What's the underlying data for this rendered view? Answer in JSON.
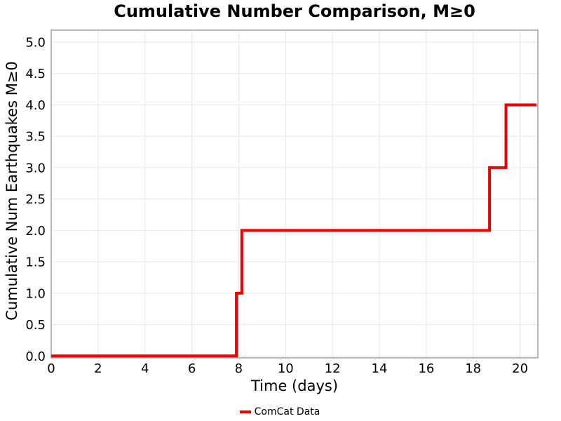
{
  "chart_data": {
    "type": "line",
    "subtype": "step-post",
    "title": "Cumulative Number Comparison, M≥0",
    "xlabel": "Time (days)",
    "ylabel": "Cumulative Num Earthquakes M≥0",
    "xlim": [
      0,
      20.76
    ],
    "ylim": [
      -0.03,
      5.19
    ],
    "xticks": [
      "0",
      "2",
      "4",
      "6",
      "8",
      "10",
      "12",
      "14",
      "16",
      "18",
      "20"
    ],
    "yticks": [
      "0.0",
      "0.5",
      "1.0",
      "1.5",
      "2.0",
      "2.5",
      "3.0",
      "3.5",
      "4.0",
      "4.5",
      "5.0"
    ],
    "grid": true,
    "colors": {
      "grid": "#e8e8e8",
      "frame": "#8a8a8a",
      "text": "#000000",
      "background": "#ffffff"
    },
    "legend": {
      "position": "bottom-center",
      "entries": [
        {
          "label": "ComCat Data",
          "color": "#ee0000"
        }
      ]
    },
    "series": [
      {
        "name": "ComCat Data",
        "color": "#ee0000",
        "line_width": 4,
        "x": [
          0,
          7.9,
          7.9,
          8.13,
          8.13,
          18.7,
          18.7,
          19.4,
          19.4,
          20.7
        ],
        "y": [
          0,
          0,
          1,
          1,
          2,
          2,
          3,
          3,
          4,
          4
        ]
      }
    ]
  }
}
